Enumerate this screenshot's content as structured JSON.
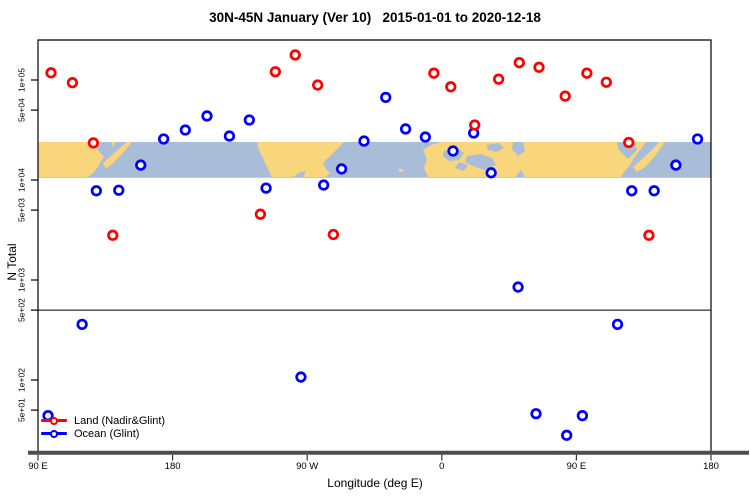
{
  "title": "30N-45N January (Ver 10)   2015-01-01 to 2020-12-18",
  "chart_data": {
    "type": "scatter",
    "title": "30N-45N January (Ver 10)   2015-01-01 to 2020-12-18",
    "xlabel": "Longitude (deg E)",
    "ylabel": "N Total",
    "x_axis": {
      "units": "deg E (continuous, wraps past 360)",
      "range": [
        90,
        540
      ],
      "ticks": [
        {
          "pos": 90,
          "label": "90 E"
        },
        {
          "pos": 180,
          "label": "180"
        },
        {
          "pos": 270,
          "label": "90 W"
        },
        {
          "pos": 360,
          "label": "0"
        },
        {
          "pos": 450,
          "label": "90 E"
        },
        {
          "pos": 540,
          "label": "180"
        }
      ]
    },
    "y_axis": {
      "scale": "log",
      "range": [
        19,
        251000
      ],
      "ticks": [
        {
          "value": 100000,
          "label": "1e+05"
        },
        {
          "value": 50000,
          "label": "5e+04"
        },
        {
          "value": 10000,
          "label": "1e+04"
        },
        {
          "value": 5000,
          "label": "5e+03"
        },
        {
          "value": 1000,
          "label": "1e+03"
        },
        {
          "value": 500,
          "label": "5e+02"
        },
        {
          "value": 100,
          "label": "1e+02"
        },
        {
          "value": 50,
          "label": "5e+01"
        }
      ]
    },
    "reference_line_n": 500,
    "map_band": {
      "description": "world land/ocean strip for latitude band 30N-45N",
      "n_top": 24000,
      "n_bottom": 10500,
      "land_color": "#F9D57C",
      "ocean_color": "#A9BCD8"
    },
    "series": [
      {
        "name": "Land (Nadir&Glint)",
        "color": "#FF0000",
        "marker": "open-circle",
        "points": [
          [
            98.7,
            118000
          ],
          [
            113,
            94000
          ],
          [
            127,
            23500
          ],
          [
            140,
            2800
          ],
          [
            238.7,
            4550
          ],
          [
            248.7,
            121000
          ],
          [
            262,
            178000
          ],
          [
            277,
            89000
          ],
          [
            287.5,
            2850
          ],
          [
            354.7,
            117000
          ],
          [
            366,
            85500
          ],
          [
            382,
            35500
          ],
          [
            398,
            102000
          ],
          [
            411.8,
            149000
          ],
          [
            425,
            134000
          ],
          [
            442.5,
            69000
          ],
          [
            457,
            117000
          ],
          [
            470,
            95000
          ],
          [
            485,
            23700
          ],
          [
            498.5,
            2800
          ]
        ]
      },
      {
        "name": "Ocean (Glint)",
        "color": "#0000FF",
        "marker": "open-circle",
        "points": [
          [
            96.7,
            44
          ],
          [
            119.5,
            360
          ],
          [
            129,
            7800
          ],
          [
            144,
            7900
          ],
          [
            158.7,
            14100
          ],
          [
            174,
            25700
          ],
          [
            188.5,
            31600
          ],
          [
            203,
            43700
          ],
          [
            218,
            27500
          ],
          [
            231.3,
            39800
          ],
          [
            242.5,
            8300
          ],
          [
            265.8,
            107
          ],
          [
            281,
            8900
          ],
          [
            293,
            12900
          ],
          [
            308,
            24500
          ],
          [
            322.5,
            67000
          ],
          [
            335.8,
            32400
          ],
          [
            349,
            26900
          ],
          [
            367.5,
            19500
          ],
          [
            381.3,
            29500
          ],
          [
            393,
            11800
          ],
          [
            411,
            850
          ],
          [
            423,
            46
          ],
          [
            443.5,
            28
          ],
          [
            454,
            44
          ],
          [
            477.5,
            360
          ],
          [
            487,
            7800
          ],
          [
            502,
            7800
          ],
          [
            516.5,
            14100
          ],
          [
            531,
            25700
          ]
        ]
      }
    ],
    "legend_position": "bottom-left"
  }
}
